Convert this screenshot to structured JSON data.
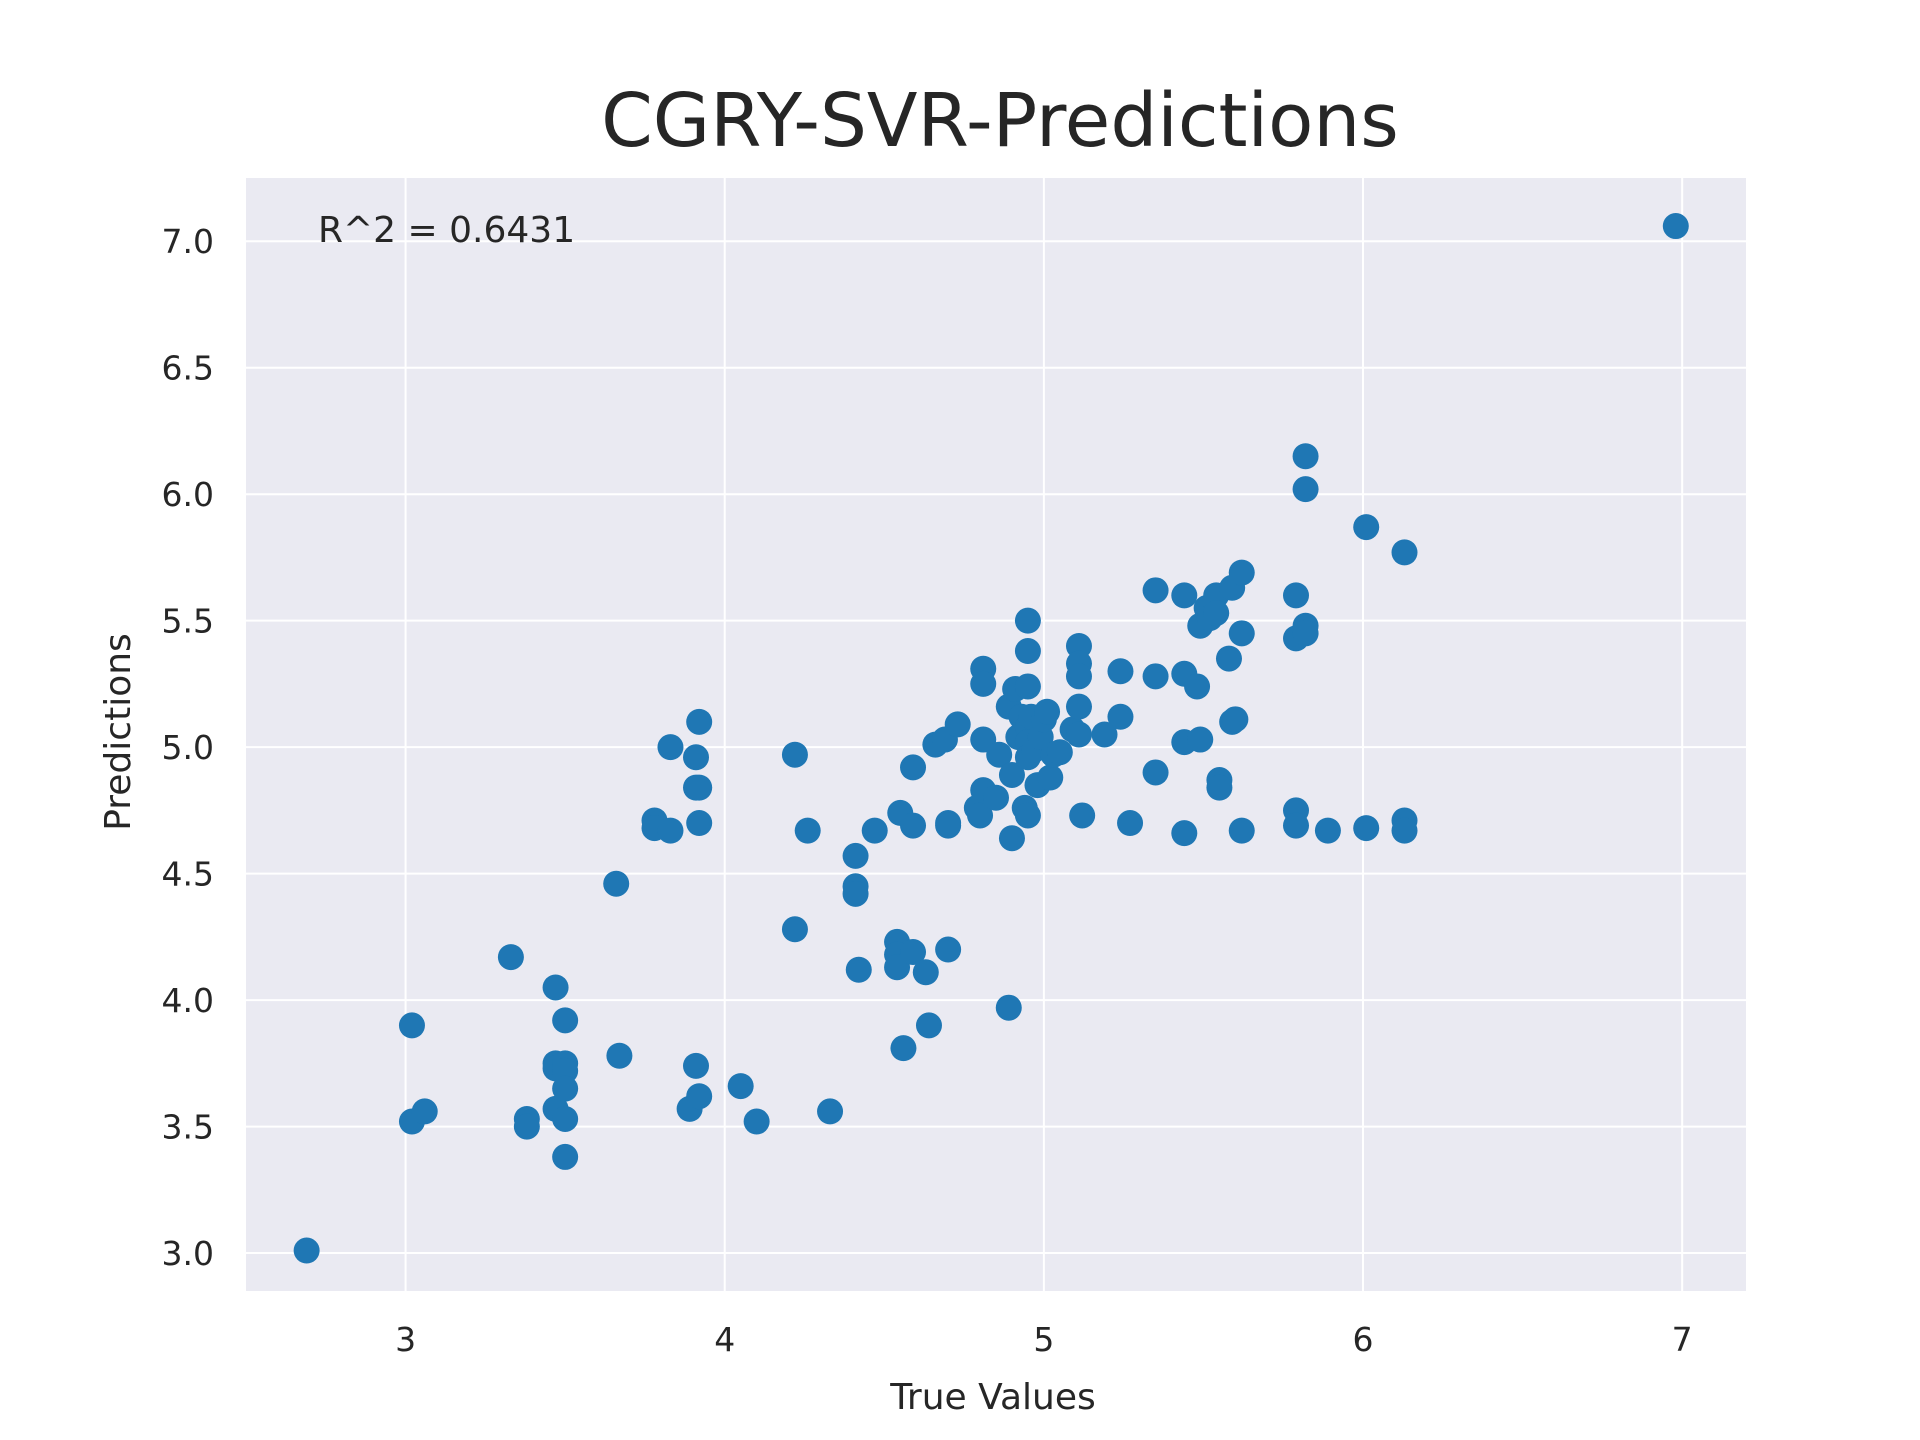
{
  "chart_data": {
    "type": "scatter",
    "title": "CGRY-SVR-Predictions",
    "xlabel": "True Values",
    "ylabel": "Predictions",
    "annotation": "R^2 = 0.6431",
    "xlim": [
      2.5,
      7.2
    ],
    "ylim": [
      2.85,
      7.25
    ],
    "xticks": [
      3,
      4,
      5,
      6,
      7
    ],
    "xtick_labels": [
      "3",
      "4",
      "5",
      "6",
      "7"
    ],
    "yticks": [
      3.0,
      3.5,
      4.0,
      4.5,
      5.0,
      5.5,
      6.0,
      6.5,
      7.0
    ],
    "ytick_labels": [
      "3.0",
      "3.5",
      "4.0",
      "4.5",
      "5.0",
      "5.5",
      "6.0",
      "6.5",
      "7.0"
    ],
    "grid": true,
    "background": "#eaeaf2",
    "point_color": "#1f77b4",
    "points": [
      [
        2.69,
        3.01
      ],
      [
        6.98,
        7.06
      ],
      [
        3.02,
        3.52
      ],
      [
        3.06,
        3.56
      ],
      [
        3.02,
        3.9
      ],
      [
        3.33,
        4.17
      ],
      [
        3.38,
        3.53
      ],
      [
        3.38,
        3.5
      ],
      [
        3.47,
        4.05
      ],
      [
        3.47,
        3.75
      ],
      [
        3.47,
        3.73
      ],
      [
        3.47,
        3.57
      ],
      [
        3.5,
        3.92
      ],
      [
        3.5,
        3.75
      ],
      [
        3.5,
        3.72
      ],
      [
        3.5,
        3.65
      ],
      [
        3.5,
        3.53
      ],
      [
        3.5,
        3.38
      ],
      [
        3.66,
        4.46
      ],
      [
        3.67,
        3.78
      ],
      [
        3.78,
        4.71
      ],
      [
        3.78,
        4.68
      ],
      [
        3.83,
        4.67
      ],
      [
        3.83,
        5.0
      ],
      [
        3.91,
        4.96
      ],
      [
        3.91,
        4.84
      ],
      [
        3.92,
        4.84
      ],
      [
        3.92,
        5.1
      ],
      [
        3.92,
        4.7
      ],
      [
        3.91,
        3.74
      ],
      [
        3.89,
        3.57
      ],
      [
        3.92,
        3.62
      ],
      [
        4.05,
        3.66
      ],
      [
        4.1,
        3.52
      ],
      [
        4.22,
        4.97
      ],
      [
        4.22,
        4.28
      ],
      [
        4.26,
        4.67
      ],
      [
        4.33,
        3.56
      ],
      [
        4.41,
        4.57
      ],
      [
        4.41,
        4.45
      ],
      [
        4.41,
        4.42
      ],
      [
        4.42,
        4.12
      ],
      [
        4.47,
        4.67
      ],
      [
        4.54,
        4.23
      ],
      [
        4.54,
        4.18
      ],
      [
        4.54,
        4.13
      ],
      [
        4.55,
        4.74
      ],
      [
        4.56,
        3.81
      ],
      [
        4.59,
        4.92
      ],
      [
        4.59,
        4.69
      ],
      [
        4.59,
        4.19
      ],
      [
        4.63,
        4.11
      ],
      [
        4.64,
        3.9
      ],
      [
        4.66,
        5.01
      ],
      [
        4.69,
        5.03
      ],
      [
        4.7,
        4.7
      ],
      [
        4.7,
        4.69
      ],
      [
        4.7,
        4.2
      ],
      [
        4.73,
        5.09
      ],
      [
        4.79,
        4.76
      ],
      [
        4.8,
        4.73
      ],
      [
        4.81,
        5.31
      ],
      [
        4.81,
        5.25
      ],
      [
        4.81,
        5.03
      ],
      [
        4.81,
        4.83
      ],
      [
        4.85,
        4.8
      ],
      [
        4.86,
        4.97
      ],
      [
        4.89,
        5.16
      ],
      [
        4.9,
        4.89
      ],
      [
        4.9,
        4.64
      ],
      [
        4.89,
        3.97
      ],
      [
        4.91,
        5.23
      ],
      [
        4.92,
        5.04
      ],
      [
        4.93,
        5.12
      ],
      [
        4.94,
        4.76
      ],
      [
        4.95,
        5.5
      ],
      [
        4.95,
        5.38
      ],
      [
        4.95,
        5.24
      ],
      [
        4.95,
        5.08
      ],
      [
        4.95,
        5.02
      ],
      [
        4.95,
        4.96
      ],
      [
        4.95,
        4.73
      ],
      [
        4.96,
        5.12
      ],
      [
        4.97,
        4.99
      ],
      [
        4.98,
        4.85
      ],
      [
        4.99,
        5.04
      ],
      [
        5.0,
        5.11
      ],
      [
        5.01,
        5.14
      ],
      [
        5.02,
        4.88
      ],
      [
        5.03,
        4.97
      ],
      [
        5.05,
        4.98
      ],
      [
        5.09,
        5.07
      ],
      [
        5.11,
        5.4
      ],
      [
        5.11,
        5.33
      ],
      [
        5.11,
        5.28
      ],
      [
        5.11,
        5.16
      ],
      [
        5.11,
        5.05
      ],
      [
        5.12,
        4.73
      ],
      [
        5.19,
        5.05
      ],
      [
        5.24,
        5.3
      ],
      [
        5.24,
        5.12
      ],
      [
        5.27,
        4.7
      ],
      [
        5.35,
        5.62
      ],
      [
        5.35,
        5.28
      ],
      [
        5.35,
        4.9
      ],
      [
        5.44,
        5.6
      ],
      [
        5.44,
        5.29
      ],
      [
        5.44,
        5.02
      ],
      [
        5.44,
        4.66
      ],
      [
        5.48,
        5.24
      ],
      [
        5.49,
        5.48
      ],
      [
        5.49,
        5.03
      ],
      [
        5.51,
        5.55
      ],
      [
        5.52,
        5.51
      ],
      [
        5.54,
        5.6
      ],
      [
        5.54,
        5.53
      ],
      [
        5.55,
        4.87
      ],
      [
        5.55,
        4.84
      ],
      [
        5.58,
        5.35
      ],
      [
        5.59,
        5.1
      ],
      [
        5.59,
        5.63
      ],
      [
        5.6,
        5.11
      ],
      [
        5.62,
        5.69
      ],
      [
        5.62,
        5.45
      ],
      [
        5.62,
        4.67
      ],
      [
        5.79,
        5.6
      ],
      [
        5.79,
        5.43
      ],
      [
        5.79,
        4.75
      ],
      [
        5.79,
        4.69
      ],
      [
        5.82,
        6.15
      ],
      [
        5.82,
        6.02
      ],
      [
        5.82,
        5.48
      ],
      [
        5.82,
        5.45
      ],
      [
        5.89,
        4.67
      ],
      [
        6.01,
        5.87
      ],
      [
        6.01,
        4.68
      ],
      [
        6.13,
        5.77
      ],
      [
        6.13,
        4.71
      ],
      [
        6.13,
        4.67
      ]
    ]
  }
}
